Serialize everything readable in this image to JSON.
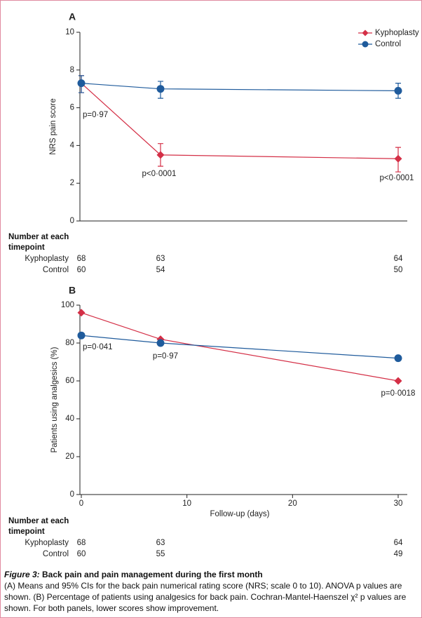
{
  "chart_data": [
    {
      "type": "line",
      "title": "A",
      "ylabel": "NRS pain score",
      "xlim": [
        0,
        30
      ],
      "ylim": [
        0,
        10
      ],
      "yticks": [
        0,
        2,
        4,
        6,
        8,
        10
      ],
      "x": [
        0,
        7.5,
        30
      ],
      "legend": "upper right",
      "at_risk_title": "Number at each timepoint",
      "series": [
        {
          "name": "Kyphoplasty",
          "color": "#d42f46",
          "marker": "diamond",
          "values": [
            7.3,
            3.5,
            3.3
          ],
          "ci_low": [
            6.8,
            2.9,
            2.6
          ],
          "ci_high": [
            7.7,
            4.1,
            3.9
          ],
          "at_risk": [
            68,
            63,
            64
          ]
        },
        {
          "name": "Control",
          "color": "#1f5b9c",
          "marker": "circle",
          "values": [
            7.3,
            7.0,
            6.9
          ],
          "ci_low": [
            6.8,
            6.5,
            6.5
          ],
          "ci_high": [
            7.7,
            7.4,
            7.3
          ],
          "at_risk": [
            60,
            54,
            50
          ]
        }
      ],
      "annotations": [
        "p=0·97",
        "p<0·0001",
        "p<0·0001"
      ]
    },
    {
      "type": "line",
      "title": "B",
      "ylabel": "Patients using analgesics (%)",
      "xlabel": "Follow-up (days)",
      "xlim": [
        0,
        30
      ],
      "xticks": [
        0,
        10,
        20,
        30
      ],
      "ylim": [
        0,
        100
      ],
      "yticks": [
        0,
        20,
        40,
        60,
        80,
        100
      ],
      "x": [
        0,
        7.5,
        30
      ],
      "at_risk_title": "Number at each timepoint",
      "series": [
        {
          "name": "Kyphoplasty",
          "color": "#d42f46",
          "marker": "diamond",
          "values": [
            96,
            82,
            60
          ],
          "at_risk": [
            68,
            63,
            64
          ]
        },
        {
          "name": "Control",
          "color": "#1f5b9c",
          "marker": "circle",
          "values": [
            84,
            80,
            72
          ],
          "at_risk": [
            60,
            55,
            49
          ]
        }
      ],
      "annotations": [
        "p=0·041",
        "p=0·97",
        "p=0·0018"
      ]
    }
  ],
  "caption": {
    "label": "Figure 3:",
    "title": "Back pain and pain management during the first month",
    "text": "(A) Means and 95% CIs for the back pain numerical rating score (NRS; scale 0 to 10). ANOVA p values are shown. (B) Percentage of patients using analgesics for back pain. Cochran-Mantel-Haenszel χ² p values are shown. For both panels, lower scores show improvement."
  }
}
